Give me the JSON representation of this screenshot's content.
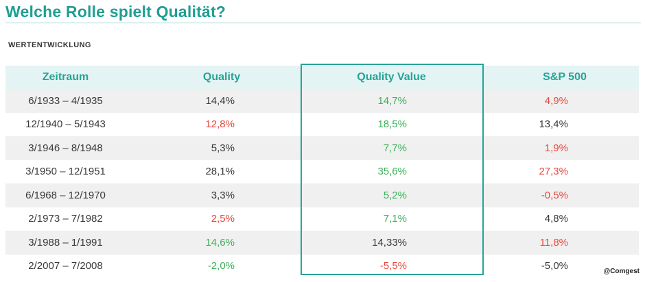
{
  "title": "Welche Rolle spielt Qualität?",
  "subtitle": "WERTENTWICKLUNG",
  "watermark": "@Comgest",
  "colors": {
    "accent": "#25a497",
    "header_bg": "#e4f3f3",
    "positive": "#3cb05a",
    "negative": "#e8483c",
    "neutral": "#3a3a3a"
  },
  "chart_data": {
    "type": "table",
    "columns": [
      "Zeitraum",
      "Quality",
      "Quality Value",
      "S&P 500"
    ],
    "highlighted_column": "Quality Value",
    "rows": [
      {
        "period": "6/1933 – 4/1935",
        "quality": "14,4%",
        "quality_value": "14,7%",
        "sp500": "4,9%",
        "quality_color": "neutral",
        "quality_value_color": "positive",
        "sp500_color": "negative"
      },
      {
        "period": "12/1940 – 5/1943",
        "quality": "12,8%",
        "quality_value": "18,5%",
        "sp500": "13,4%",
        "quality_color": "negative",
        "quality_value_color": "positive",
        "sp500_color": "neutral"
      },
      {
        "period": "3/1946 – 8/1948",
        "quality": "5,3%",
        "quality_value": "7,7%",
        "sp500": "1,9%",
        "quality_color": "neutral",
        "quality_value_color": "positive",
        "sp500_color": "negative"
      },
      {
        "period": "3/1950 – 12/1951",
        "quality": "28,1%",
        "quality_value": "35,6%",
        "sp500": "27,3%",
        "quality_color": "neutral",
        "quality_value_color": "positive",
        "sp500_color": "negative"
      },
      {
        "period": "6/1968 – 12/1970",
        "quality": "3,3%",
        "quality_value": "5,2%",
        "sp500": "-0,5%",
        "quality_color": "neutral",
        "quality_value_color": "positive",
        "sp500_color": "negative"
      },
      {
        "period": "2/1973 – 7/1982",
        "quality": "2,5%",
        "quality_value": "7,1%",
        "sp500": "4,8%",
        "quality_color": "negative",
        "quality_value_color": "positive",
        "sp500_color": "neutral"
      },
      {
        "period": "3/1988 – 1/1991",
        "quality": "14,6%",
        "quality_value": "14,33%",
        "sp500": "11,8%",
        "quality_color": "positive",
        "quality_value_color": "neutral",
        "sp500_color": "negative"
      },
      {
        "period": "2/2007 – 7/2008",
        "quality": "-2,0%",
        "quality_value": "-5,5%",
        "sp500": "-5,0%",
        "quality_color": "positive",
        "quality_value_color": "negative",
        "sp500_color": "neutral"
      }
    ]
  }
}
